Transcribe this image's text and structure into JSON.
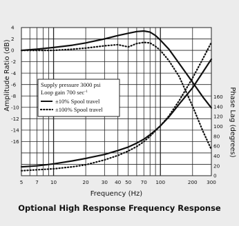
{
  "chart_data": {
    "type": "line",
    "title": "",
    "caption": "Optional High Response Frequency Response",
    "x_scale": "log",
    "xlabel": "Frequency (Hz)",
    "xlim": [
      5,
      300
    ],
    "x_ticks": [
      5,
      7,
      10,
      20,
      30,
      40,
      50,
      70,
      100,
      200,
      300
    ],
    "grid": true,
    "left_axis": {
      "label": "Amplitude Ratio (dB)",
      "range": [
        -22,
        4
      ],
      "tick_values": [
        4,
        2,
        0,
        -2,
        -4,
        -6,
        -8,
        -10,
        -12,
        -14,
        -16
      ],
      "tick_labels": [
        "4",
        "2",
        "0",
        "-2",
        "-4",
        "-6",
        "-8",
        "-10",
        "-12",
        "-14",
        "-16"
      ]
    },
    "right_axis": {
      "label": "Phase Lag (degrees)",
      "range": [
        0,
        300
      ],
      "tick_values": [
        0,
        20,
        40,
        60,
        80,
        100,
        120,
        140,
        160
      ],
      "tick_labels": [
        "0",
        "20",
        "40",
        "60",
        "80",
        "100",
        "120",
        "140",
        "160"
      ]
    },
    "legend": {
      "placement": "middle-left",
      "lines": [
        "Supply pressure 3000 psi",
        "Loop gain 700 sec"
      ],
      "loop_gain_superscript": "-1",
      "entries": [
        {
          "label": "±10% Spool travel",
          "style": "solid"
        },
        {
          "label": "±100% Spool travel",
          "style": "dotted"
        }
      ]
    },
    "series": [
      {
        "name": "±10% Spool travel",
        "style": "solid",
        "axis": "left",
        "quantity": "amplitude",
        "x": [
          5,
          7,
          10,
          15,
          20,
          30,
          40,
          50,
          60,
          70,
          80,
          90,
          100,
          120,
          150,
          200,
          250,
          300
        ],
        "y": [
          0,
          0.2,
          0.5,
          0.9,
          1.3,
          2.0,
          2.6,
          3.0,
          3.3,
          3.4,
          3.2,
          2.6,
          1.8,
          0.2,
          -2.3,
          -5.6,
          -8.2,
          -10.1
        ]
      },
      {
        "name": "±100% Spool travel",
        "style": "dotted",
        "axis": "left",
        "quantity": "amplitude",
        "x": [
          5,
          7,
          10,
          15,
          20,
          30,
          40,
          50,
          60,
          70,
          80,
          90,
          100,
          120,
          150,
          200,
          250,
          300
        ],
        "y": [
          0,
          0,
          0,
          0.2,
          0.4,
          0.8,
          1.0,
          0.6,
          1.2,
          1.4,
          1.3,
          0.7,
          0,
          -1.8,
          -4.6,
          -9.8,
          -14.2,
          -17.4
        ]
      },
      {
        "name": "±10% Spool travel",
        "style": "solid",
        "axis": "right",
        "quantity": "phase",
        "x": [
          5,
          7,
          10,
          15,
          20,
          30,
          40,
          50,
          60,
          70,
          80,
          90,
          100,
          120,
          150,
          200,
          250,
          300
        ],
        "y": [
          18,
          20,
          24,
          30,
          35,
          43,
          51,
          58,
          66,
          74,
          83,
          92,
          101,
          119,
          145,
          178,
          210,
          236
        ]
      },
      {
        "name": "±100% Spool travel",
        "style": "dotted",
        "axis": "right",
        "quantity": "phase",
        "x": [
          5,
          7,
          10,
          15,
          20,
          30,
          40,
          50,
          60,
          70,
          80,
          90,
          100,
          120,
          150,
          200,
          250,
          300
        ],
        "y": [
          10,
          12,
          14,
          18,
          22,
          32,
          41,
          50,
          59,
          69,
          80,
          91,
          101,
          121,
          152,
          198,
          237,
          270
        ]
      }
    ]
  },
  "colors": {
    "background": "#ececec",
    "plot_background": "#ffffff",
    "grid": "#222222",
    "line": "#111111"
  }
}
